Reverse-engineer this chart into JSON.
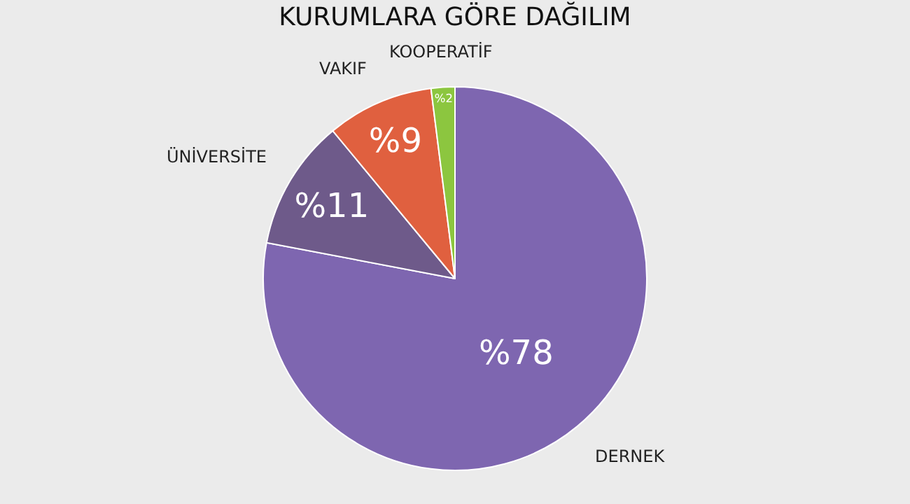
{
  "chart_data": {
    "type": "pie",
    "title": "KURUMLARA GÖRE DAĞILIM",
    "categories": [
      "DERNEK",
      "ÜNİVERSİTE",
      "VAKIF",
      "KOOPERATİF"
    ],
    "values": [
      78,
      11,
      9,
      2
    ],
    "colors": [
      "#7e66b0",
      "#6e5a8a",
      "#e0603f",
      "#8cc63f"
    ],
    "value_labels": [
      "%78",
      "%11",
      "%9",
      "%2"
    ]
  }
}
